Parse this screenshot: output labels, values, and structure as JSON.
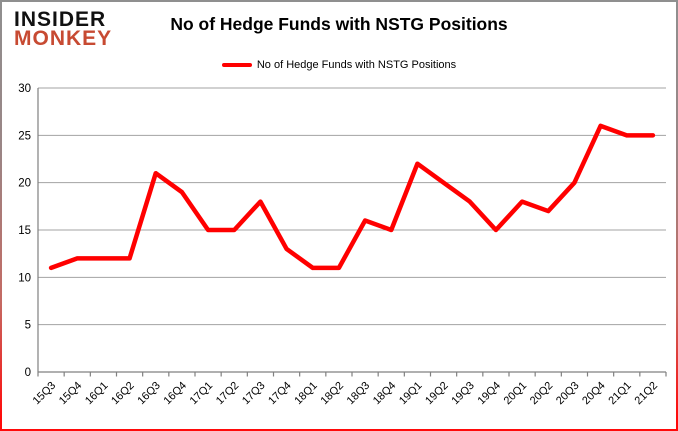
{
  "logo": {
    "line1": "INSIDER",
    "line2": "MONKEY",
    "line2_color": "#c74a32"
  },
  "header": {
    "title": "No of Hedge Funds with NSTG Positions"
  },
  "legend": {
    "label": "No of Hedge Funds with NSTG Positions",
    "swatch_color": "#ff0000"
  },
  "chart_data": {
    "type": "line",
    "title": "No of Hedge Funds with NSTG Positions",
    "categories": [
      "15Q3",
      "15Q4",
      "16Q1",
      "16Q2",
      "16Q3",
      "16Q4",
      "17Q1",
      "17Q2",
      "17Q3",
      "17Q4",
      "18Q1",
      "18Q2",
      "18Q3",
      "18Q4",
      "19Q1",
      "19Q2",
      "19Q3",
      "19Q4",
      "20Q1",
      "20Q2",
      "20Q3",
      "20Q4",
      "21Q1",
      "21Q2"
    ],
    "series": [
      {
        "name": "No of Hedge Funds with NSTG Positions",
        "values": [
          11,
          12,
          12,
          12,
          21,
          19,
          15,
          15,
          18,
          13,
          11,
          11,
          16,
          15,
          22,
          20,
          18,
          15,
          18,
          17,
          20,
          26,
          25,
          25
        ]
      }
    ],
    "xlabel": "",
    "ylabel": "",
    "ylim": [
      0,
      30
    ],
    "yticks": [
      0,
      5,
      10,
      15,
      20,
      25,
      30
    ],
    "grid": true,
    "legend_position": "top-center",
    "line_color": "#ff0000",
    "line_width": 4.5,
    "axis_color": "#808080",
    "grid_color": "#a3a3a3",
    "tick_label_color": "#000000"
  }
}
